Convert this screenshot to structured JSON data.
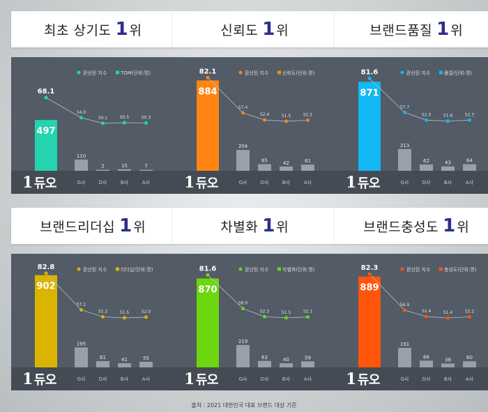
{
  "brand": "듀오",
  "brand_rank": "1",
  "rank_number": "1",
  "rank_suffix": "위",
  "legend_index": "환산된 지수",
  "competitors": [
    "G사",
    "D사",
    "B사",
    "A사"
  ],
  "source": "출처 : 2021 대한민국 대표 브랜드 대상 기준",
  "chart_data": [
    {
      "type": "bar",
      "title": "최초 상기도",
      "color": "#24d3b0",
      "legend_value": "TOM(단위:명)",
      "categories": [
        "듀오",
        "G사",
        "D사",
        "B사",
        "A사"
      ],
      "values": [
        497,
        110,
        2,
        15,
        7
      ],
      "index": [
        68.1,
        54.0,
        50.1,
        50.5,
        50.3
      ]
    },
    {
      "type": "bar",
      "title": "신뢰도",
      "color": "#ff8412",
      "legend_value": "신뢰도(단위:명)",
      "categories": [
        "듀오",
        "G사",
        "D사",
        "B사",
        "A사"
      ],
      "values": [
        884,
        204,
        65,
        42,
        61
      ],
      "index": [
        82.1,
        57.4,
        52.4,
        51.5,
        52.2
      ]
    },
    {
      "type": "bar",
      "title": "브랜드품질",
      "color": "#13b7f3",
      "legend_value": "품질(단위:명)",
      "categories": [
        "듀오",
        "G사",
        "D사",
        "B사",
        "A사"
      ],
      "values": [
        871,
        213,
        62,
        43,
        64
      ],
      "index": [
        81.6,
        57.7,
        52.3,
        51.6,
        52.3
      ]
    },
    {
      "type": "bar",
      "title": "브랜드리더십",
      "color": "#dab400",
      "legend_value": "리더십(단위:명)",
      "categories": [
        "듀오",
        "G사",
        "D사",
        "B사",
        "A사"
      ],
      "values": [
        902,
        195,
        61,
        41,
        55
      ],
      "index": [
        82.8,
        57.1,
        52.2,
        51.5,
        52.0
      ]
    },
    {
      "type": "bar",
      "title": "차별화",
      "color": "#6cd60f",
      "legend_value": "차별화(단위:명)",
      "categories": [
        "듀오",
        "G사",
        "D사",
        "B사",
        "A사"
      ],
      "values": [
        870,
        219,
        63,
        40,
        59
      ],
      "index": [
        81.6,
        58.0,
        52.3,
        51.5,
        52.1
      ]
    },
    {
      "type": "bar",
      "title": "브랜드충성도",
      "color": "#ff560c",
      "legend_value": "충성도(단위:명)",
      "categories": [
        "듀오",
        "G사",
        "D사",
        "B사",
        "A사"
      ],
      "values": [
        889,
        191,
        66,
        38,
        60
      ],
      "index": [
        82.3,
        56.9,
        52.4,
        51.4,
        52.2
      ]
    }
  ]
}
